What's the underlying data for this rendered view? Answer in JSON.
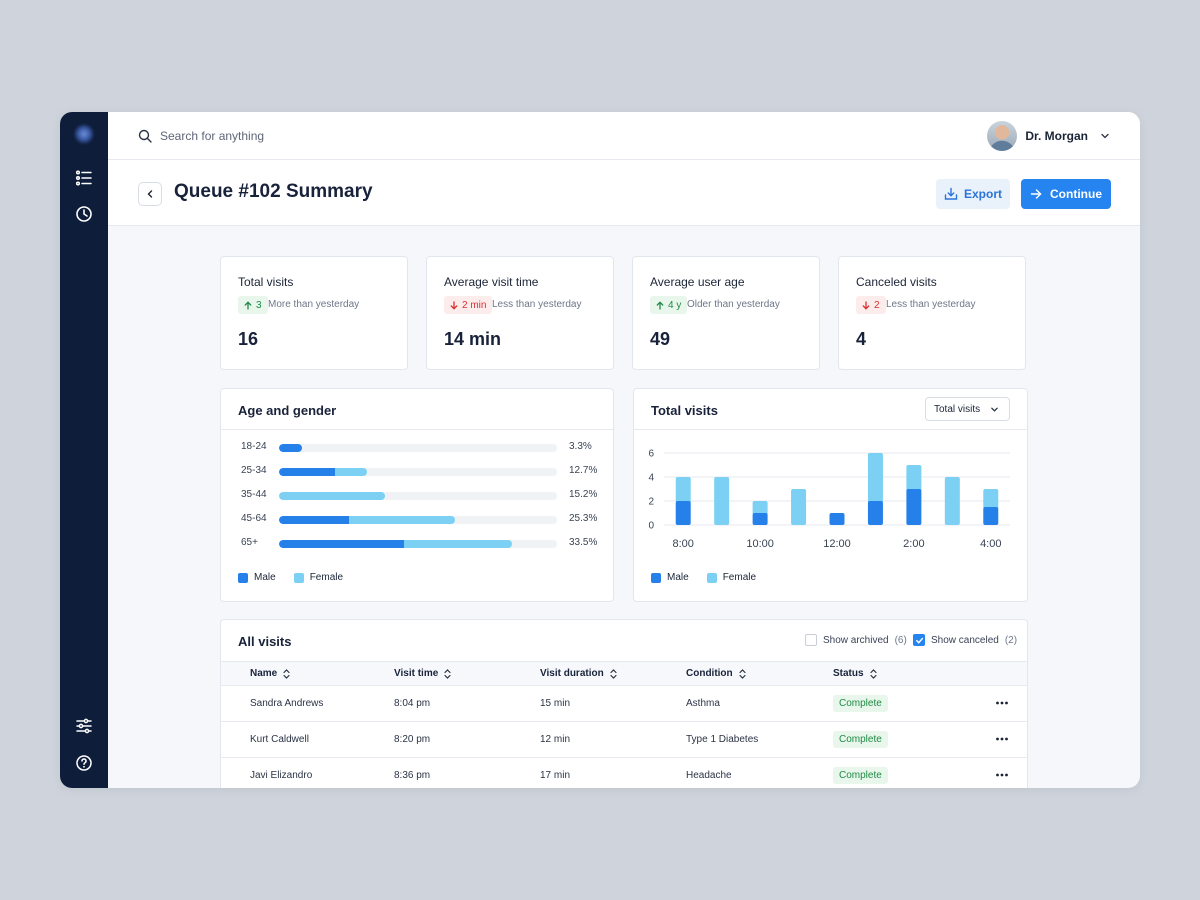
{
  "sidebar": {
    "icons": [
      "list-icon",
      "clock-icon",
      "sliders-icon",
      "help-icon"
    ]
  },
  "search": {
    "placeholder": "Search for anything"
  },
  "user": {
    "name": "Dr. Morgan"
  },
  "header": {
    "title": "Queue #102 Summary",
    "export_label": "Export",
    "continue_label": "Continue"
  },
  "stats": [
    {
      "title": "Total visits",
      "delta": "3",
      "direction": "up",
      "note": "More than yesterday",
      "value": "16"
    },
    {
      "title": "Average visit time",
      "delta": "2 min",
      "direction": "down",
      "note": "Less than yesterday",
      "value": "14 min"
    },
    {
      "title": "Average user age",
      "delta": "4 y",
      "direction": "up",
      "note": "Older than yesterday",
      "value": "49"
    },
    {
      "title": "Canceled visits",
      "delta": "2",
      "direction": "down",
      "note": "Less than yesterday",
      "value": "4"
    }
  ],
  "age_gender": {
    "title": "Age and gender",
    "rows": [
      {
        "label": "18-24",
        "pct": "3.3%",
        "male": 3.3,
        "female": 0
      },
      {
        "label": "25-34",
        "pct": "12.7%",
        "male": 8,
        "female": 4.7
      },
      {
        "label": "35-44",
        "pct": "15.2%",
        "male": 0,
        "female": 15.2
      },
      {
        "label": "45-64",
        "pct": "25.3%",
        "male": 10,
        "female": 15.3
      },
      {
        "label": "65+",
        "pct": "33.5%",
        "male": 18,
        "female": 15.5
      }
    ],
    "legend_male": "Male",
    "legend_female": "Female"
  },
  "visits_chart": {
    "title": "Total visits",
    "select_value": "Total visits",
    "legend_male": "Male",
    "legend_female": "Female"
  },
  "chart_data": {
    "type": "bar",
    "stacked": true,
    "categories": [
      "8:00",
      "9:00",
      "10:00",
      "11:00",
      "12:00",
      "1:00",
      "2:00",
      "3:00",
      "4:00"
    ],
    "x_tick_labels": [
      "8:00",
      "10:00",
      "12:00",
      "2:00",
      "4:00"
    ],
    "series": [
      {
        "name": "Male",
        "color": "#2580ea",
        "values": [
          2,
          0,
          1,
          0,
          1,
          2,
          3,
          0,
          1.5
        ]
      },
      {
        "name": "Female",
        "color": "#7bd0f3",
        "values": [
          2,
          4,
          1,
          3,
          0,
          4,
          2,
          4,
          1.5
        ]
      }
    ],
    "ylim": [
      0,
      6
    ],
    "y_ticks": [
      0,
      2,
      4,
      6
    ],
    "grid": true,
    "legend": "bottom-left"
  },
  "table": {
    "title": "All visits",
    "show_archived_label": "Show archived",
    "show_archived_count": "(6)",
    "show_archived_checked": false,
    "show_canceled_label": "Show canceled",
    "show_canceled_count": "(2)",
    "show_canceled_checked": true,
    "columns": [
      "Name",
      "Visit time",
      "Visit duration",
      "Condition",
      "Status"
    ],
    "rows": [
      {
        "name": "Sandra Andrews",
        "time": "8:04 pm",
        "duration": "15 min",
        "condition": "Asthma",
        "status": "Complete"
      },
      {
        "name": "Kurt Caldwell",
        "time": "8:20 pm",
        "duration": "12 min",
        "condition": "Type 1 Diabetes",
        "status": "Complete"
      },
      {
        "name": "Javi Elizandro",
        "time": "8:36 pm",
        "duration": "17 min",
        "condition": "Headache",
        "status": "Complete"
      }
    ]
  },
  "colors": {
    "sidebar_bg": "#0e1d3a",
    "accent": "#2684f0",
    "male": "#2580ea",
    "female": "#7bd0f3",
    "success": "#1f8a45",
    "danger": "#d93030"
  }
}
